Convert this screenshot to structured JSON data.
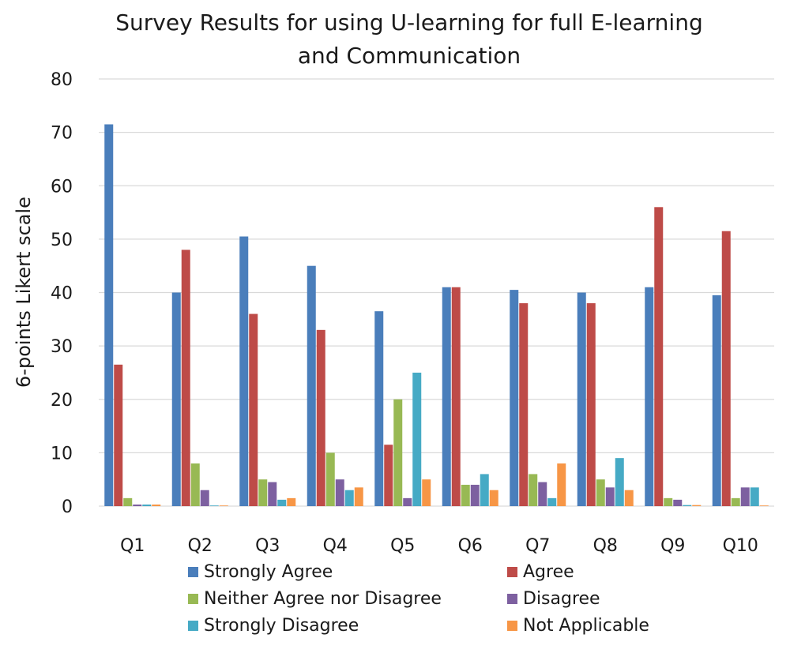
{
  "chart_data": {
    "type": "bar",
    "title_line1": "Survey Results for using U-learning for full E-learning",
    "title_line2": "and Communication",
    "ylabel": "6-points Likert scale",
    "xlabel": "",
    "ylim": [
      0,
      80
    ],
    "yticks": [
      "0",
      "10",
      "20",
      "30",
      "40",
      "50",
      "60",
      "70",
      "80"
    ],
    "grid": true,
    "legend_position": "bottom",
    "categories": [
      "Q1",
      "Q2",
      "Q3",
      "Q4",
      "Q5",
      "Q6",
      "Q7",
      "Q8",
      "Q9",
      "Q10"
    ],
    "series": [
      {
        "name": "Strongly Agree",
        "color": "#4a7ebb",
        "values": [
          71.5,
          40,
          50.5,
          45,
          36.5,
          41,
          40.5,
          40,
          41,
          39.5
        ]
      },
      {
        "name": "Agree",
        "color": "#be4b48",
        "values": [
          26.5,
          48,
          36,
          33,
          11.5,
          41,
          38,
          38,
          56,
          51.5
        ]
      },
      {
        "name": "Neither Agree nor Disagree",
        "color": "#98b954",
        "values": [
          1.5,
          8,
          5,
          10,
          20,
          4,
          6,
          5,
          1.5,
          1.5
        ]
      },
      {
        "name": "Disagree",
        "color": "#7d60a0",
        "values": [
          0.3,
          3,
          4.5,
          5,
          1.5,
          4,
          4.5,
          3.5,
          1.2,
          3.5
        ]
      },
      {
        "name": "Strongly Disagree",
        "color": "#46aac5",
        "values": [
          0.3,
          0.1,
          1.2,
          3,
          25,
          6,
          1.5,
          9,
          0.2,
          3.5
        ]
      },
      {
        "name": "Not Applicable",
        "color": "#f79646",
        "values": [
          0.3,
          0.1,
          1.5,
          3.5,
          5,
          3,
          8,
          3,
          0.2,
          0.1
        ]
      }
    ]
  }
}
